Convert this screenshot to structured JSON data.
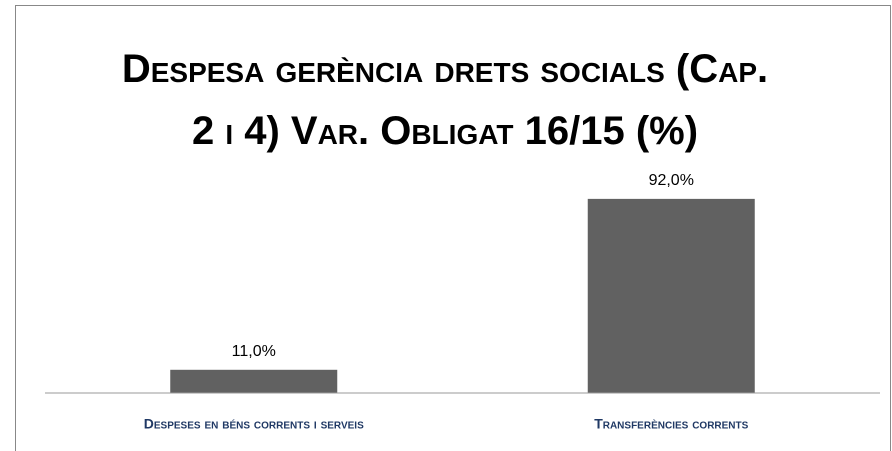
{
  "chart_data": {
    "type": "bar",
    "title": "Despesa gerència drets socials (Cap. 2 i 4) Var. Obligat 16/15 (%)",
    "categories": [
      "Despeses en béns corrents i serveis",
      "Transferències corrents"
    ],
    "values": [
      11.0,
      92.0
    ],
    "value_labels": [
      "11,0%",
      "92,0%"
    ],
    "color": "#616161",
    "ylim": [
      0,
      100
    ]
  }
}
